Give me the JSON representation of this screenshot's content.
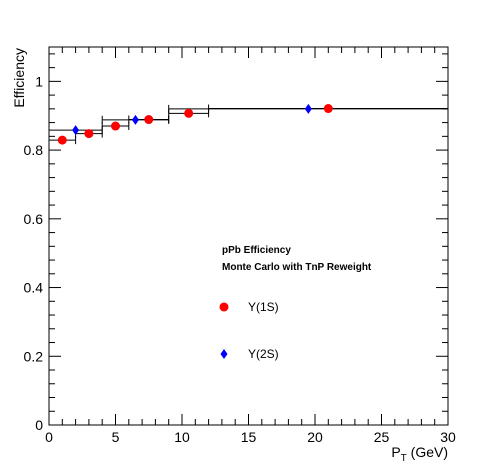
{
  "chart_data": {
    "type": "scatter",
    "title": "",
    "xlabel_main": "P",
    "xlabel_sub": "T",
    "xlabel_unit": " (GeV)",
    "ylabel": "Efficiency",
    "xlim": [
      0,
      30
    ],
    "ylim": [
      0,
      1.1
    ],
    "x_ticks": [
      0,
      5,
      10,
      15,
      20,
      25,
      30
    ],
    "x_tick_labels": [
      "0",
      "5",
      "10",
      "15",
      "20",
      "25",
      "30"
    ],
    "y_ticks": [
      0,
      0.2,
      0.4,
      0.6,
      0.8,
      1
    ],
    "y_tick_labels": [
      "0",
      "0.2",
      "0.4",
      "0.6",
      "0.8",
      "1"
    ],
    "grid": false,
    "legend_position": "center-right",
    "legend_header": [
      "pPb Efficiency",
      "Monte Carlo with TnP Reweight"
    ],
    "series": [
      {
        "name": "Υ(1S)",
        "color": "#ff0000",
        "marker": "circle",
        "points": [
          {
            "x": 1.0,
            "y": 0.829,
            "xlo": 0,
            "xhi": 2
          },
          {
            "x": 3.0,
            "y": 0.848,
            "xlo": 2,
            "xhi": 4
          },
          {
            "x": 5.0,
            "y": 0.87,
            "xlo": 4,
            "xhi": 6
          },
          {
            "x": 7.5,
            "y": 0.889,
            "xlo": 6,
            "xhi": 9
          },
          {
            "x": 10.5,
            "y": 0.907,
            "xlo": 9,
            "xhi": 12
          },
          {
            "x": 21.0,
            "y": 0.921,
            "xlo": 12,
            "xhi": 30
          }
        ]
      },
      {
        "name": "Υ(2S)",
        "color": "#0000ff",
        "marker": "diamond",
        "points": [
          {
            "x": 2.0,
            "y": 0.858,
            "xlo": 0,
            "xhi": 4
          },
          {
            "x": 6.5,
            "y": 0.888,
            "xlo": 4,
            "xhi": 9
          },
          {
            "x": 19.5,
            "y": 0.92,
            "xlo": 9,
            "xhi": 30
          }
        ]
      }
    ]
  }
}
